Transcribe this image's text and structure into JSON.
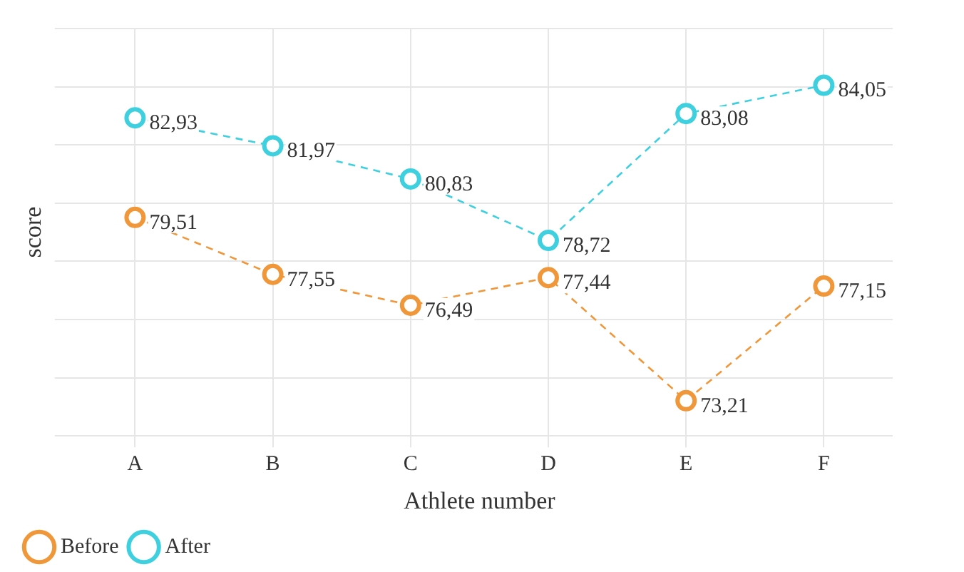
{
  "chart_data": {
    "type": "line",
    "xlabel": "Athlete number",
    "ylabel": "score",
    "categories": [
      "A",
      "B",
      "C",
      "D",
      "E",
      "F"
    ],
    "series": [
      {
        "name": "Before",
        "color": "#f0973a",
        "values": [
          79.51,
          77.55,
          76.49,
          77.44,
          73.21,
          77.15
        ],
        "value_labels": [
          "79,51",
          "77,55",
          "76,49",
          "77,44",
          "73,21",
          "77,15"
        ]
      },
      {
        "name": "After",
        "color": "#3fd0e0",
        "values": [
          82.93,
          81.97,
          80.83,
          78.72,
          83.08,
          84.05
        ],
        "value_labels": [
          "82,93",
          "81,97",
          "80,83",
          "78,72",
          "83,08",
          "84,05"
        ]
      }
    ],
    "tick_labels": "x",
    "grid": true,
    "legend": "bottom left",
    "marker": "circle",
    "line_style": "dashed"
  }
}
